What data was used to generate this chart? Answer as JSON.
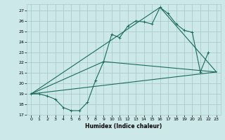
{
  "xlabel": "Humidex (Indice chaleur)",
  "bg_color": "#cce8e8",
  "grid_color": "#aacccc",
  "line_color": "#1a6b5a",
  "xlim": [
    -0.5,
    23.5
  ],
  "ylim": [
    17,
    27.6
  ],
  "yticks": [
    17,
    18,
    19,
    20,
    21,
    22,
    23,
    24,
    25,
    26,
    27
  ],
  "xticks": [
    0,
    1,
    2,
    3,
    4,
    5,
    6,
    7,
    8,
    9,
    10,
    11,
    12,
    13,
    14,
    15,
    16,
    17,
    18,
    19,
    20,
    21,
    22,
    23
  ],
  "series1_x": [
    0,
    1,
    2,
    3,
    4,
    5,
    6,
    7,
    8,
    9,
    10,
    11,
    12,
    13,
    14,
    15,
    16,
    17,
    18,
    19,
    20,
    21,
    22
  ],
  "series1_y": [
    19.0,
    19.0,
    18.8,
    18.5,
    17.7,
    17.4,
    17.4,
    18.2,
    20.3,
    22.1,
    24.7,
    24.4,
    25.5,
    26.0,
    25.9,
    25.7,
    27.3,
    26.7,
    25.7,
    25.1,
    24.9,
    21.1,
    23.0
  ],
  "line2_x": [
    0,
    23
  ],
  "line2_y": [
    19.0,
    21.1
  ],
  "line3_x": [
    0,
    9,
    23
  ],
  "line3_y": [
    19.0,
    22.1,
    21.1
  ],
  "line4_x": [
    0,
    16,
    23
  ],
  "line4_y": [
    19.0,
    27.3,
    21.1
  ]
}
